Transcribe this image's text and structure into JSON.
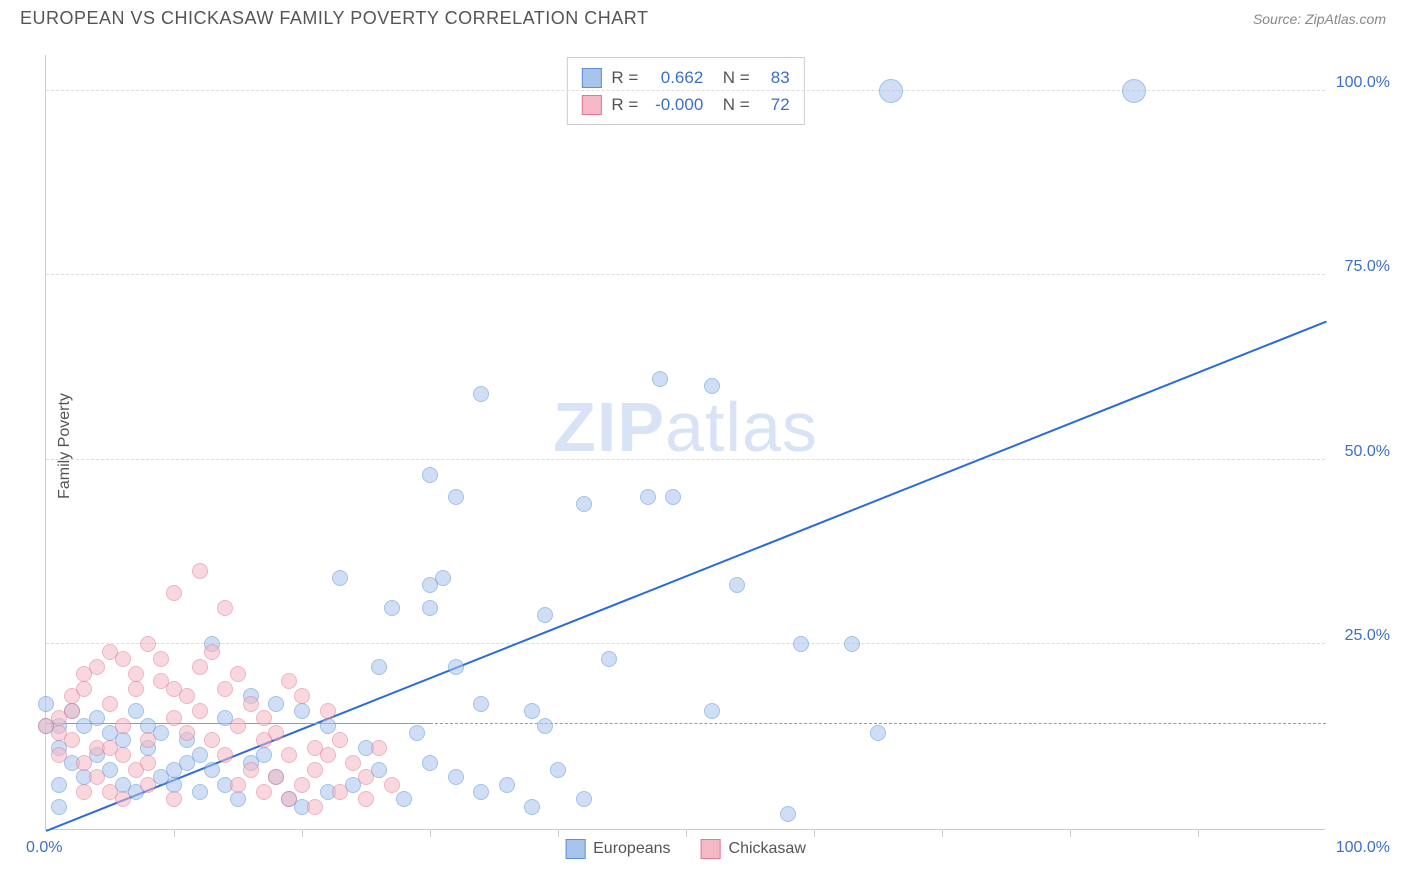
{
  "header": {
    "title": "EUROPEAN VS CHICKASAW FAMILY POVERTY CORRELATION CHART",
    "source": "Source: ZipAtlas.com"
  },
  "watermark": {
    "bold": "ZIP",
    "rest": "atlas"
  },
  "chart": {
    "type": "scatter",
    "ylabel": "Family Poverty",
    "xlim": [
      0,
      100
    ],
    "ylim": [
      0,
      105
    ],
    "ytick_labels": [
      "25.0%",
      "50.0%",
      "75.0%",
      "100.0%"
    ],
    "ytick_values": [
      25,
      50,
      75,
      100
    ],
    "xtick_values": [
      10,
      20,
      30,
      40,
      50,
      60,
      70,
      80,
      90
    ],
    "xtick_label_left": "0.0%",
    "xtick_label_right": "100.0%",
    "background_color": "#ffffff",
    "grid_color": "#dddddd",
    "axis_color": "#cccccc",
    "tick_label_color": "#3b6fc9",
    "ylabel_color": "#555555",
    "point_radius": 8,
    "large_point_radius": 12,
    "series": [
      {
        "name": "Europeans",
        "fill_color": "#a8c4ec",
        "stroke_color": "#5b8fd6",
        "fill_opacity": 0.55,
        "points": [
          [
            66,
            100
          ],
          [
            85,
            100
          ],
          [
            48,
            61
          ],
          [
            52,
            60
          ],
          [
            34,
            59
          ],
          [
            30,
            48
          ],
          [
            32,
            45
          ],
          [
            47,
            45
          ],
          [
            49,
            45
          ],
          [
            42,
            44
          ],
          [
            23,
            34
          ],
          [
            31,
            34
          ],
          [
            30,
            33
          ],
          [
            54,
            33
          ],
          [
            27,
            30
          ],
          [
            39,
            29
          ],
          [
            13,
            25
          ],
          [
            59,
            25
          ],
          [
            63,
            25
          ],
          [
            44,
            23
          ],
          [
            26,
            22
          ],
          [
            32,
            22
          ],
          [
            34,
            17
          ],
          [
            38,
            16
          ],
          [
            52,
            16
          ],
          [
            39,
            14
          ],
          [
            65,
            13
          ],
          [
            16,
            18
          ],
          [
            18,
            17
          ],
          [
            20,
            16
          ],
          [
            22,
            14
          ],
          [
            29,
            13
          ],
          [
            25,
            11
          ],
          [
            2,
            16
          ],
          [
            3,
            14
          ],
          [
            4,
            15
          ],
          [
            5,
            13
          ],
          [
            6,
            12
          ],
          [
            7,
            16
          ],
          [
            8,
            14
          ],
          [
            9,
            7
          ],
          [
            10,
            8
          ],
          [
            11,
            9
          ],
          [
            12,
            10
          ],
          [
            13,
            8
          ],
          [
            14,
            15
          ],
          [
            15,
            4
          ],
          [
            17,
            10
          ],
          [
            5,
            8
          ],
          [
            6,
            6
          ],
          [
            7,
            5
          ],
          [
            8,
            11
          ],
          [
            9,
            13
          ],
          [
            10,
            6
          ],
          [
            11,
            12
          ],
          [
            4,
            10
          ],
          [
            3,
            7
          ],
          [
            2,
            9
          ],
          [
            1,
            11
          ],
          [
            1,
            14
          ],
          [
            0,
            17
          ],
          [
            0,
            14
          ],
          [
            19,
            4
          ],
          [
            20,
            3
          ],
          [
            22,
            5
          ],
          [
            24,
            6
          ],
          [
            26,
            8
          ],
          [
            28,
            4
          ],
          [
            30,
            9
          ],
          [
            32,
            7
          ],
          [
            34,
            5
          ],
          [
            36,
            6
          ],
          [
            38,
            3
          ],
          [
            40,
            8
          ],
          [
            42,
            4
          ],
          [
            18,
            7
          ],
          [
            16,
            9
          ],
          [
            14,
            6
          ],
          [
            12,
            5
          ],
          [
            30,
            30
          ],
          [
            1,
            6
          ],
          [
            1,
            3
          ],
          [
            58,
            2
          ]
        ],
        "regression": {
          "slope": 0.69,
          "intercept": 0,
          "color": "#2b6adb",
          "width": 2.5,
          "dash": "solid"
        }
      },
      {
        "name": "Chickasaw",
        "fill_color": "#f5b8c4",
        "stroke_color": "#e07a93",
        "fill_opacity": 0.55,
        "points": [
          [
            12,
            35
          ],
          [
            10,
            32
          ],
          [
            14,
            30
          ],
          [
            4,
            22
          ],
          [
            5,
            24
          ],
          [
            6,
            23
          ],
          [
            7,
            21
          ],
          [
            8,
            25
          ],
          [
            9,
            20
          ],
          [
            3,
            21
          ],
          [
            2,
            16
          ],
          [
            2,
            18
          ],
          [
            1,
            15
          ],
          [
            1,
            13
          ],
          [
            0,
            14
          ],
          [
            3,
            19
          ],
          [
            4,
            11
          ],
          [
            5,
            17
          ],
          [
            6,
            14
          ],
          [
            7,
            19
          ],
          [
            8,
            12
          ],
          [
            9,
            23
          ],
          [
            10,
            15
          ],
          [
            11,
            18
          ],
          [
            12,
            22
          ],
          [
            13,
            24
          ],
          [
            14,
            19
          ],
          [
            15,
            21
          ],
          [
            16,
            17
          ],
          [
            17,
            15
          ],
          [
            18,
            13
          ],
          [
            19,
            20
          ],
          [
            20,
            18
          ],
          [
            21,
            11
          ],
          [
            22,
            16
          ],
          [
            6,
            10
          ],
          [
            7,
            8
          ],
          [
            8,
            9
          ],
          [
            5,
            11
          ],
          [
            4,
            7
          ],
          [
            3,
            9
          ],
          [
            2,
            12
          ],
          [
            1,
            10
          ],
          [
            10,
            19
          ],
          [
            11,
            13
          ],
          [
            12,
            16
          ],
          [
            13,
            12
          ],
          [
            14,
            10
          ],
          [
            15,
            14
          ],
          [
            16,
            8
          ],
          [
            17,
            12
          ],
          [
            18,
            7
          ],
          [
            19,
            10
          ],
          [
            20,
            6
          ],
          [
            21,
            8
          ],
          [
            22,
            10
          ],
          [
            23,
            12
          ],
          [
            24,
            9
          ],
          [
            25,
            7
          ],
          [
            26,
            11
          ],
          [
            15,
            6
          ],
          [
            17,
            5
          ],
          [
            19,
            4
          ],
          [
            21,
            3
          ],
          [
            23,
            5
          ],
          [
            25,
            4
          ],
          [
            27,
            6
          ],
          [
            5,
            5
          ],
          [
            6,
            4
          ],
          [
            8,
            6
          ],
          [
            10,
            4
          ],
          [
            3,
            5
          ]
        ],
        "regression": {
          "slope": 0,
          "intercept": 14.5,
          "color": "#e07a93",
          "width": 1.5,
          "dash": "dashed",
          "solid_until_x": 30
        }
      }
    ]
  },
  "stats": {
    "rows": [
      {
        "swatch_fill": "#a8c4ec",
        "swatch_border": "#5b8fd6",
        "r_label": "R =",
        "r_val": "0.662",
        "n_label": "N =",
        "n_val": "83"
      },
      {
        "swatch_fill": "#f5b8c4",
        "swatch_border": "#e07a93",
        "r_label": "R =",
        "r_val": "-0.000",
        "n_label": "N =",
        "n_val": "72"
      }
    ]
  },
  "legend": {
    "items": [
      {
        "swatch_fill": "#a8c4ec",
        "swatch_border": "#5b8fd6",
        "label": "Europeans"
      },
      {
        "swatch_fill": "#f5b8c4",
        "swatch_border": "#e07a93",
        "label": "Chickasaw"
      }
    ]
  }
}
